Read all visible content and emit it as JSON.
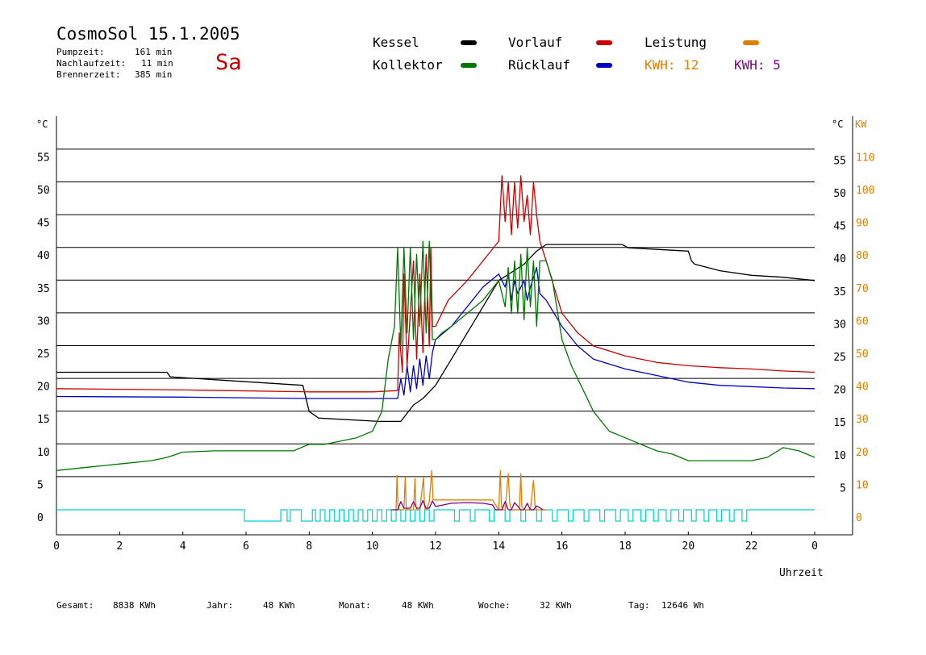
{
  "header": {
    "title": "CosmoSol 15.1.2005",
    "pump_label": "Pumpzeit:",
    "pump_value": "161 min",
    "after_label": "Nachlaufzeit:",
    "after_value": "11 min",
    "burner_label": "Brennerzeit:",
    "burner_value": "385 min",
    "weekday": "Sa"
  },
  "legend": {
    "kessel": "Kessel",
    "kollektor": "Kollektor",
    "vorlauf": "Vorlauf",
    "ruecklauf": "Rücklauf",
    "leistung": "Leistung",
    "kwh1": "KWH: 12",
    "kwh2": "KWH: 5"
  },
  "colors": {
    "kessel": "#000000",
    "kollektor": "#007800",
    "vorlauf": "#cc0000",
    "ruecklauf": "#0000c8",
    "leistung": "#e08000",
    "kwh2": "#800080",
    "pump": "#00d0d0"
  },
  "footer": {
    "gesamt_label": "Gesamt:",
    "gesamt_value": "8838 KWh",
    "jahr_label": "Jahr:",
    "jahr_value": "48 KWh",
    "monat_label": "Monat:",
    "monat_value": "48 KWh",
    "woche_label": "Woche:",
    "woche_value": "32 KWh",
    "tag_label": "Tag:",
    "tag_value": "12646 Wh"
  },
  "chart_data": {
    "type": "line",
    "xlabel": "Uhrzeit",
    "ylabel_left": "°C",
    "ylabel_right": "°C",
    "ylabel_kw": "KW",
    "xlim": [
      0,
      24
    ],
    "ylim": [
      -4,
      60
    ],
    "grid": true,
    "x_ticks": [
      "0",
      "2",
      "4",
      "6",
      "8",
      "10",
      "12",
      "14",
      "16",
      "18",
      "20",
      "22",
      "0"
    ],
    "y_ticks_left": [
      "0",
      "5",
      "10",
      "15",
      "20",
      "25",
      "30",
      "35",
      "40",
      "45",
      "50",
      "55"
    ],
    "y_ticks_right": [
      "5",
      "10",
      "15",
      "20",
      "25",
      "30",
      "35",
      "40",
      "45",
      "50",
      "55"
    ],
    "y_ticks_kw": [
      "0",
      "10",
      "20",
      "30",
      "40",
      "50",
      "60",
      "70",
      "80",
      "90",
      "100",
      "110"
    ],
    "series": [
      {
        "name": "Kessel",
        "key": "kessel",
        "x": [
          0,
          3.5,
          3.6,
          7.8,
          8,
          8.3,
          10.2,
          10.9,
          11.3,
          11.6,
          12,
          13,
          14,
          14.8,
          15.2,
          15.5,
          17.9,
          18.1,
          20,
          20.1,
          20.2,
          21,
          22,
          23,
          24
        ],
        "y": [
          21,
          21,
          20.3,
          19,
          15,
          14,
          13.5,
          13.5,
          16,
          17,
          19,
          27,
          35,
          37.5,
          39.5,
          40.5,
          40.5,
          40,
          39.5,
          38,
          37.5,
          36.5,
          35.8,
          35.5,
          35
        ]
      },
      {
        "name": "Vorlauf",
        "key": "vorlauf",
        "x": [
          0,
          4,
          8,
          10,
          10.8,
          10.85,
          10.95,
          11.0,
          11.1,
          11.3,
          11.4,
          11.5,
          11.6,
          11.7,
          11.8,
          11.85,
          11.9,
          12,
          12.4,
          13,
          13.5,
          14,
          14.1,
          14.2,
          14.3,
          14.4,
          14.5,
          14.6,
          14.7,
          14.8,
          14.9,
          15.0,
          15.1,
          15.2,
          15.3,
          15.5,
          16,
          16.5,
          17,
          18,
          19,
          20,
          21,
          22,
          23,
          24
        ],
        "y": [
          18.5,
          18.3,
          18,
          18,
          18.2,
          27,
          21,
          36,
          22,
          38,
          23,
          36,
          24,
          39,
          25,
          40,
          28,
          28,
          32,
          35,
          38,
          41,
          51,
          44,
          50,
          42,
          50,
          43,
          51,
          44,
          48,
          42,
          50,
          45,
          41,
          38,
          30,
          27,
          25,
          23.5,
          22.5,
          22,
          21.7,
          21.5,
          21.2,
          21
        ]
      },
      {
        "name": "Rücklauf",
        "key": "ruecklauf",
        "x": [
          0,
          4,
          8,
          10,
          10.8,
          10.9,
          11.0,
          11.1,
          11.2,
          11.3,
          11.4,
          11.5,
          11.6,
          11.7,
          11.8,
          11.9,
          12,
          12.5,
          13,
          13.5,
          14,
          14.2,
          14.3,
          14.4,
          14.5,
          14.6,
          14.8,
          14.9,
          15.0,
          15.2,
          15.3,
          15.5,
          16,
          16.5,
          17,
          18,
          19,
          20,
          21,
          22,
          23,
          24
        ],
        "y": [
          17.3,
          17.2,
          17,
          17,
          17,
          20,
          17.5,
          22,
          18,
          22,
          18.5,
          23,
          19,
          23.5,
          20,
          24,
          26,
          28,
          31,
          34,
          36,
          34,
          36,
          32,
          35,
          33,
          35,
          32,
          34,
          37,
          33,
          32,
          28,
          25,
          23,
          21.5,
          20.5,
          19.5,
          19,
          18.8,
          18.6,
          18.5
        ]
      },
      {
        "name": "Kollektor",
        "key": "kollektor",
        "x": [
          0,
          1,
          2,
          3,
          3.5,
          4,
          5,
          6,
          7,
          7.5,
          8,
          8.5,
          9,
          9.5,
          10,
          10.3,
          10.5,
          10.7,
          10.8,
          10.9,
          11.0,
          11.1,
          11.2,
          11.3,
          11.4,
          11.5,
          11.6,
          11.7,
          11.8,
          11.9,
          12,
          12.2,
          12.5,
          13,
          13.5,
          14,
          14.2,
          14.3,
          14.4,
          14.5,
          14.6,
          14.7,
          14.8,
          14.9,
          15.0,
          15.1,
          15.2,
          15.3,
          15.5,
          15.7,
          16,
          16.3,
          16.6,
          17,
          17.5,
          18,
          18.5,
          19,
          19.5,
          20,
          21,
          22,
          22.5,
          23,
          23.5,
          24
        ],
        "y": [
          6,
          6.5,
          7,
          7.5,
          8,
          8.8,
          9,
          9,
          9,
          9,
          10,
          10,
          10.5,
          11,
          12,
          15,
          23,
          28,
          40,
          25,
          40,
          27,
          40,
          26,
          39,
          28,
          41,
          27,
          41,
          26,
          26,
          27,
          28,
          30,
          32,
          35,
          31,
          37,
          30,
          38,
          30,
          39,
          29,
          40,
          31,
          38,
          28,
          38,
          38,
          35,
          26,
          22,
          19,
          15,
          12,
          11,
          10,
          9,
          8.5,
          7.5,
          7.5,
          7.5,
          8,
          9.5,
          9,
          8
        ]
      },
      {
        "name": "Leistung",
        "key": "leistung",
        "x": [
          10.7,
          10.75,
          10.78,
          10.81,
          10.85,
          11.0,
          11.04,
          11.07,
          11.1,
          11.3,
          11.35,
          11.38,
          11.42,
          11.5,
          11.62,
          11.65,
          11.68,
          11.72,
          11.8,
          11.88,
          11.92,
          11.96,
          12,
          12.2,
          13,
          13.8,
          14.0,
          14.05,
          14.08,
          14.11,
          14.2,
          14.3,
          14.35,
          14.4,
          14.5,
          14.65,
          14.7,
          14.73,
          14.8,
          15.0,
          15.1,
          15.15,
          15.2,
          15.3,
          15.5
        ],
        "y": [
          0,
          0,
          10.5,
          1,
          0,
          0,
          10,
          1,
          0,
          0,
          9.5,
          1,
          0,
          0,
          10,
          1,
          0,
          0,
          2.5,
          12,
          3,
          3,
          3,
          3,
          3,
          3,
          0,
          12,
          2,
          0,
          0,
          11,
          2,
          0,
          0,
          0,
          11,
          1,
          0,
          0,
          9,
          1,
          0,
          0,
          0
        ]
      },
      {
        "name": "KWH: 5",
        "key": "kwh2",
        "x": [
          10.6,
          10.8,
          10.9,
          11.0,
          11.2,
          11.3,
          11.4,
          11.5,
          11.6,
          11.7,
          11.8,
          11.9,
          12,
          12.5,
          13,
          13.5,
          13.8,
          13.9,
          14.1,
          14.2,
          14.3,
          14.4,
          14.5,
          14.7,
          14.8,
          14.9,
          15.0,
          15.1,
          15.2,
          15.4
        ],
        "y": [
          0,
          0,
          2.5,
          0.5,
          0.5,
          2.5,
          0.5,
          0.5,
          2.8,
          0.5,
          0.5,
          2.7,
          1,
          2,
          2.2,
          2,
          1.5,
          0,
          0,
          2.5,
          0,
          0,
          2.2,
          0,
          0,
          2.0,
          0,
          0,
          1.2,
          0
        ]
      }
    ],
    "pump_baseline": 0,
    "pump_pulses": [
      [
        5.95,
        7.1
      ],
      [
        7.3,
        7.4
      ],
      [
        7.75,
        8.1
      ],
      [
        8.2,
        8.35
      ],
      [
        8.5,
        8.65
      ],
      [
        8.8,
        8.95
      ],
      [
        9.1,
        9.25
      ],
      [
        9.4,
        9.55
      ],
      [
        9.7,
        9.85
      ],
      [
        10.0,
        10.15
      ],
      [
        10.3,
        10.45
      ],
      [
        10.6,
        10.75
      ],
      [
        10.9,
        11.05
      ],
      [
        11.2,
        11.35
      ],
      [
        11.5,
        11.65
      ],
      [
        11.8,
        11.95
      ],
      [
        12.6,
        12.75
      ],
      [
        13.1,
        13.25
      ],
      [
        13.7,
        13.85
      ],
      [
        14.2,
        14.35
      ],
      [
        14.7,
        14.85
      ],
      [
        15.2,
        15.35
      ],
      [
        15.7,
        15.85
      ],
      [
        16.2,
        16.35
      ],
      [
        16.7,
        16.85
      ],
      [
        17.2,
        17.35
      ],
      [
        17.7,
        17.85
      ],
      [
        18.1,
        18.25
      ],
      [
        18.5,
        18.65
      ],
      [
        18.9,
        19.05
      ],
      [
        19.3,
        19.45
      ],
      [
        19.7,
        19.85
      ],
      [
        20.1,
        20.25
      ],
      [
        20.5,
        20.65
      ],
      [
        20.9,
        21.05
      ],
      [
        21.3,
        21.45
      ],
      [
        21.7,
        21.85
      ]
    ]
  }
}
